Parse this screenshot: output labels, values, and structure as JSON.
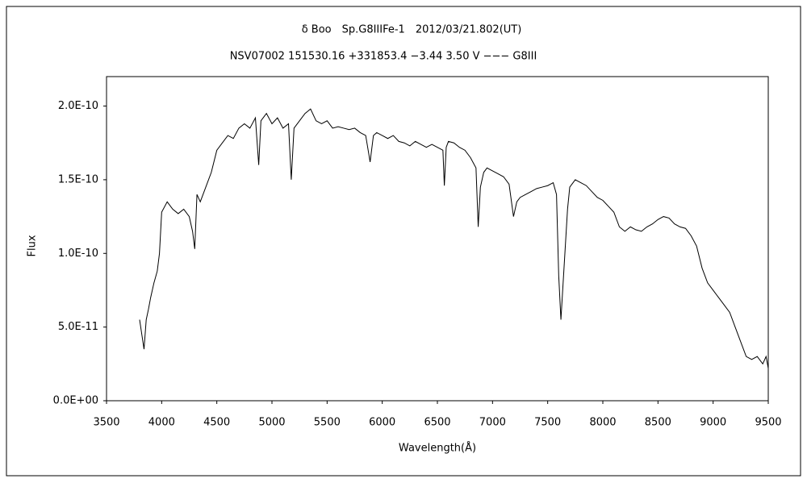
{
  "chart_data": {
    "type": "line",
    "title": "δ Boo　Sp.G8IIIFe-1　2012/03/21.802(UT)",
    "subtitle": "NSV07002 151530.16 +331853.4 −3.44 3.50 V −−− G8III",
    "x_label": "Wavelength(Å)",
    "y_label": "Flux",
    "color": "#000000",
    "x": [
      3800,
      3820,
      3840,
      3860,
      3880,
      3900,
      3930,
      3960,
      3980,
      4000,
      4050,
      4100,
      4150,
      4200,
      4250,
      4280,
      4300,
      4320,
      4350,
      4400,
      4450,
      4500,
      4550,
      4600,
      4650,
      4700,
      4750,
      4800,
      4850,
      4880,
      4900,
      4950,
      5000,
      5050,
      5100,
      5150,
      5175,
      5200,
      5250,
      5300,
      5350,
      5400,
      5450,
      5500,
      5550,
      5600,
      5650,
      5700,
      5750,
      5800,
      5850,
      5890,
      5920,
      5950,
      6000,
      6050,
      6100,
      6150,
      6200,
      6250,
      6300,
      6350,
      6400,
      6450,
      6500,
      6550,
      6563,
      6580,
      6600,
      6650,
      6700,
      6750,
      6800,
      6850,
      6870,
      6890,
      6920,
      6950,
      7000,
      7050,
      7100,
      7150,
      7190,
      7220,
      7250,
      7300,
      7350,
      7400,
      7450,
      7500,
      7550,
      7580,
      7600,
      7620,
      7640,
      7680,
      7700,
      7750,
      7800,
      7850,
      7900,
      7950,
      8000,
      8050,
      8100,
      8150,
      8200,
      8250,
      8300,
      8350,
      8400,
      8450,
      8500,
      8550,
      8600,
      8650,
      8700,
      8750,
      8800,
      8850,
      8900,
      8950,
      9000,
      9050,
      9100,
      9150,
      9200,
      9250,
      9300,
      9350,
      9400,
      9450,
      9480,
      9500
    ],
    "values": [
      5.5e-11,
      4.5e-11,
      3.5e-11,
      5.5e-11,
      6.2e-11,
      7e-11,
      8e-11,
      8.8e-11,
      1e-10,
      1.28e-10,
      1.35e-10,
      1.3e-10,
      1.27e-10,
      1.3e-10,
      1.25e-10,
      1.15e-10,
      1.03e-10,
      1.4e-10,
      1.35e-10,
      1.45e-10,
      1.55e-10,
      1.7e-10,
      1.75e-10,
      1.8e-10,
      1.78e-10,
      1.85e-10,
      1.88e-10,
      1.85e-10,
      1.92e-10,
      1.6e-10,
      1.9e-10,
      1.95e-10,
      1.88e-10,
      1.92e-10,
      1.85e-10,
      1.88e-10,
      1.5e-10,
      1.85e-10,
      1.9e-10,
      1.95e-10,
      1.98e-10,
      1.9e-10,
      1.88e-10,
      1.9e-10,
      1.85e-10,
      1.86e-10,
      1.85e-10,
      1.84e-10,
      1.85e-10,
      1.82e-10,
      1.8e-10,
      1.62e-10,
      1.8e-10,
      1.82e-10,
      1.8e-10,
      1.78e-10,
      1.8e-10,
      1.76e-10,
      1.75e-10,
      1.73e-10,
      1.76e-10,
      1.74e-10,
      1.72e-10,
      1.74e-10,
      1.72e-10,
      1.7e-10,
      1.46e-10,
      1.72e-10,
      1.76e-10,
      1.75e-10,
      1.72e-10,
      1.7e-10,
      1.65e-10,
      1.58e-10,
      1.18e-10,
      1.45e-10,
      1.55e-10,
      1.58e-10,
      1.56e-10,
      1.54e-10,
      1.52e-10,
      1.47e-10,
      1.25e-10,
      1.35e-10,
      1.38e-10,
      1.4e-10,
      1.42e-10,
      1.44e-10,
      1.45e-10,
      1.46e-10,
      1.48e-10,
      1.4e-10,
      8.5e-11,
      5.5e-11,
      8e-11,
      1.3e-10,
      1.45e-10,
      1.5e-10,
      1.48e-10,
      1.46e-10,
      1.42e-10,
      1.38e-10,
      1.36e-10,
      1.32e-10,
      1.28e-10,
      1.18e-10,
      1.15e-10,
      1.18e-10,
      1.16e-10,
      1.15e-10,
      1.18e-10,
      1.2e-10,
      1.23e-10,
      1.25e-10,
      1.24e-10,
      1.2e-10,
      1.18e-10,
      1.17e-10,
      1.12e-10,
      1.05e-10,
      9e-11,
      8e-11,
      7.5e-11,
      7e-11,
      6.5e-11,
      6e-11,
      5e-11,
      4e-11,
      3e-11,
      2.8e-11,
      3e-11,
      2.5e-11,
      3e-11,
      2.2e-11
    ],
    "xlim": [
      3500,
      9500
    ],
    "xticks": [
      3500,
      4000,
      4500,
      5000,
      5500,
      6000,
      6500,
      7000,
      7500,
      8000,
      8500,
      9000,
      9500
    ],
    "ylim": [
      0,
      2.2e-10
    ],
    "yticks": [
      {
        "value": 0,
        "label": "0.0E+00"
      },
      {
        "value": 5e-11,
        "label": "5.0E-11"
      },
      {
        "value": 1e-10,
        "label": "1.0E-10"
      },
      {
        "value": 1.5e-10,
        "label": "1.5E-10"
      },
      {
        "value": 2e-10,
        "label": "2.0E-10"
      }
    ],
    "grid": false
  }
}
